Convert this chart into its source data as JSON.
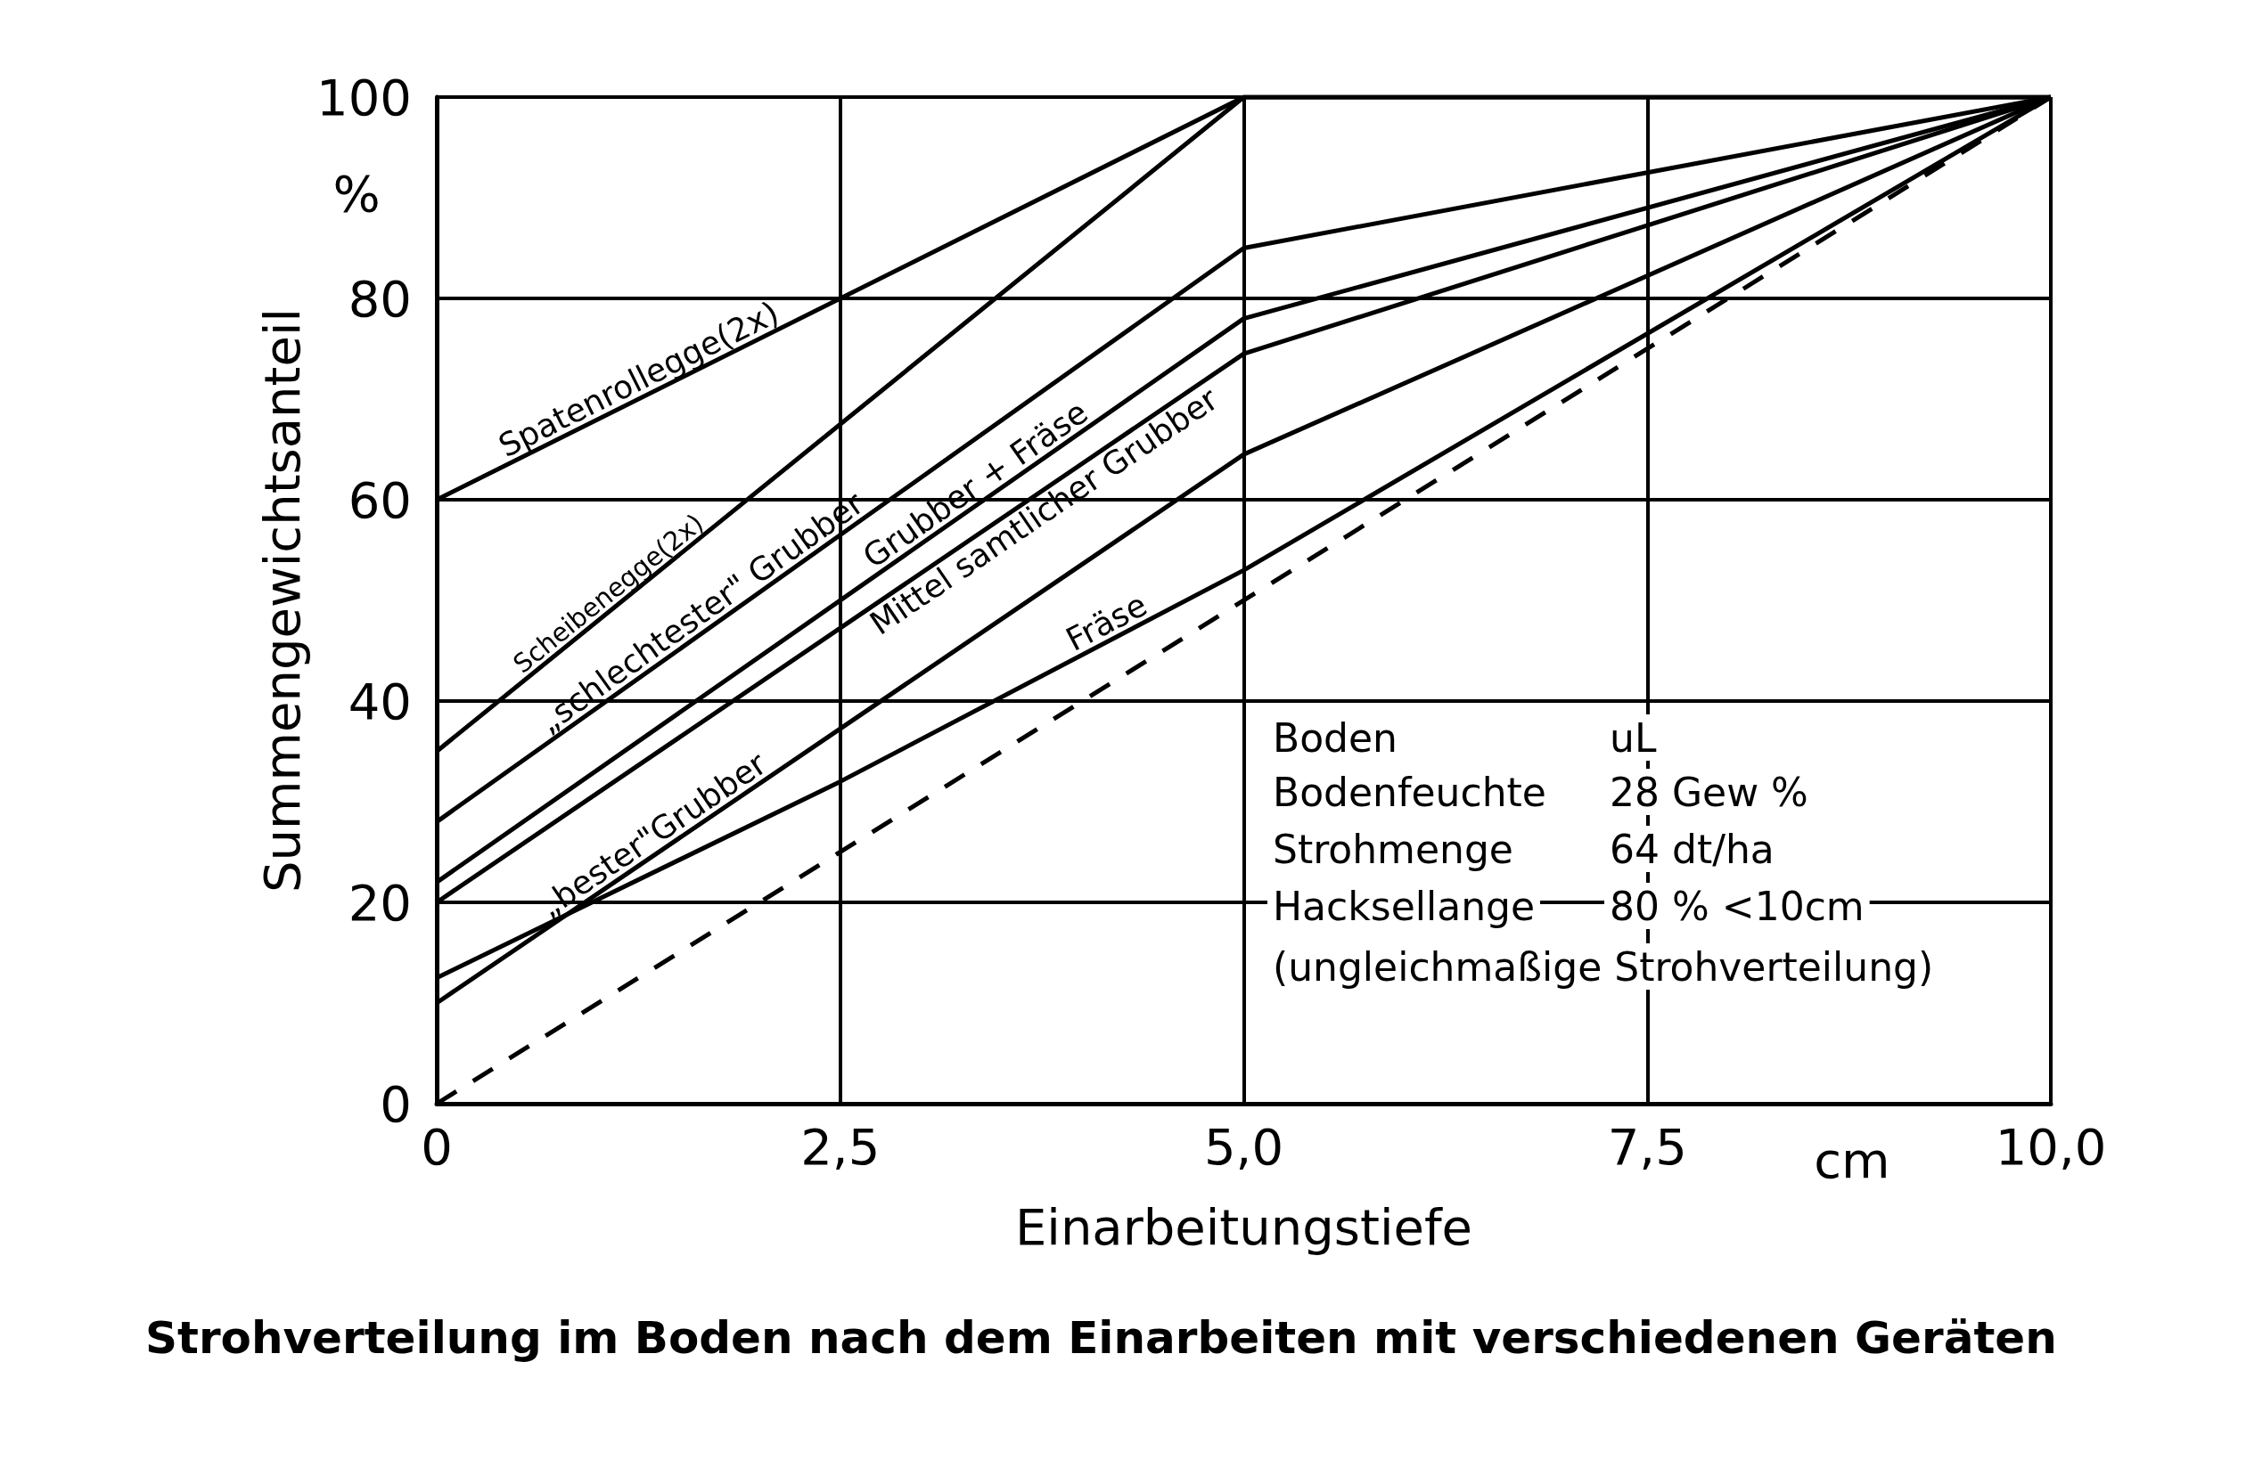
{
  "chart_data": {
    "type": "line",
    "title": "Strohverteilung im Boden nach dem Einarbeiten mit verschiedenen Geräten",
    "xlabel": "Einarbeitungstiefe",
    "ylabel": "Summengewichtsanteil",
    "xlim": [
      0,
      10
    ],
    "xticks": [
      0,
      {
        "value": 2.5,
        "label": "2,5"
      },
      {
        "value": 5,
        "label": "5,0"
      },
      {
        "value": 7.5,
        "label": "7,5"
      },
      {
        "value": 10,
        "label": "10,0"
      }
    ],
    "ylim": [
      0,
      100
    ],
    "yticks": [
      0,
      20,
      40,
      60,
      80,
      100
    ],
    "grid": true,
    "legend": false,
    "marker": "none",
    "line_style": "solid",
    "annotations": [
      "%",
      "cm",
      "Boden",
      "uL",
      "Bodenfeuchte",
      "28 Gew %",
      "Strohmenge",
      "64 dt/ha",
      "Hacksellange",
      "80 % <10cm",
      "(ungleichmaßige Strohverteilung)"
    ],
    "series": [
      {
        "name": "Spatenrollegge(2x)",
        "color": "#000000",
        "x": [
          0,
          5,
          10
        ],
        "values": [
          60,
          100,
          100
        ]
      },
      {
        "name": "Scheibenegge(2x)",
        "color": "#000000",
        "x": [
          0,
          5,
          10
        ],
        "values": [
          35,
          100,
          100
        ]
      },
      {
        "name": "„schlechtester\" Grubber",
        "color": "#000000",
        "x": [
          0,
          5,
          10
        ],
        "values": [
          28,
          85,
          100
        ]
      },
      {
        "name": "Grubber + Fräse",
        "color": "#000000",
        "x": [
          0,
          5,
          10
        ],
        "values": [
          22,
          78,
          100
        ]
      },
      {
        "name": "Mittel samtlicher Grubber",
        "color": "#000000",
        "x": [
          0,
          5,
          10
        ],
        "values": [
          20,
          74.5,
          100
        ]
      },
      {
        "name": "„bester\"Grubber",
        "color": "#000000",
        "x": [
          0,
          5,
          10
        ],
        "values": [
          10,
          64.5,
          100
        ]
      },
      {
        "name": "Fräse",
        "color": "#000000",
        "x": [
          0,
          2.5,
          5,
          10
        ],
        "values": [
          12.5,
          32,
          53,
          100
        ]
      },
      {
        "color": "#000000",
        "x": [
          0,
          10
        ],
        "values": [
          0,
          100
        ],
        "line_style": "dashed"
      }
    ]
  }
}
